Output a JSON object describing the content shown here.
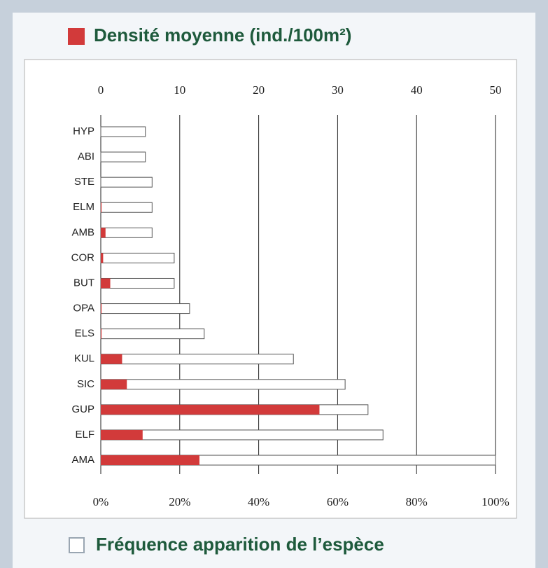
{
  "chart_data": {
    "type": "bar",
    "orientation": "horizontal",
    "categories": [
      "HYP",
      "ABI",
      "STE",
      "ELM",
      "AMB",
      "COR",
      "BUT",
      "OPA",
      "ELS",
      "KUL",
      "SIC",
      "GUP",
      "ELF",
      "AMA"
    ],
    "series": [
      {
        "name": "Fréquence apparition de l’espèce",
        "color": "#ffffff",
        "edgecolor": "#555555",
        "values": [
          11.3,
          11.3,
          13,
          13,
          13,
          18.6,
          18.6,
          22.5,
          26.2,
          48.8,
          61.9,
          67.7,
          71.5,
          100
        ]
      },
      {
        "name": "Densité moyenne (ind./100m²)",
        "color": "#d23a3a",
        "axis": "x2",
        "values": [
          0,
          0,
          0,
          0.1,
          0.6,
          0.3,
          1.2,
          0.1,
          0.1,
          2.7,
          3.3,
          27.7,
          5.3,
          12.5
        ]
      }
    ],
    "xlim": [
      0,
      100
    ],
    "xticks": [
      {
        "value": 0,
        "label": "0%"
      },
      {
        "value": 20,
        "label": "20%"
      },
      {
        "value": 40,
        "label": "40%"
      },
      {
        "value": 60,
        "label": "60%"
      },
      {
        "value": 80,
        "label": "80%"
      },
      {
        "value": 100,
        "label": "100%"
      }
    ],
    "x2lim": [
      0,
      50
    ],
    "x2ticks": [
      0,
      10,
      20,
      30,
      40,
      50
    ],
    "grid": true
  }
}
